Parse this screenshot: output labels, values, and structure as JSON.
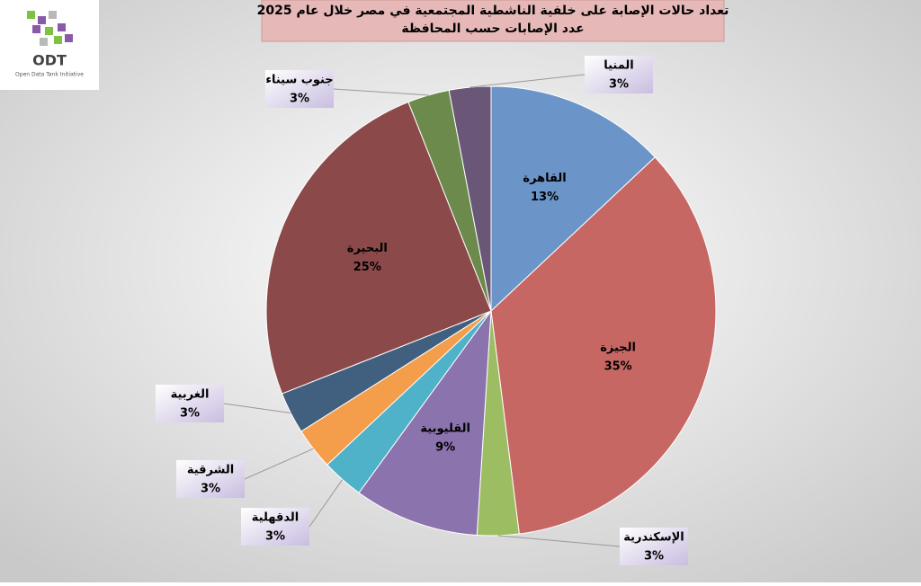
{
  "logo": {
    "name": "ODT",
    "tagline": "Open Data Tank Initiative"
  },
  "chart_data": {
    "type": "pie",
    "title": "تعداد حالات الإصابة على خلفية الناشطية المجتمعية في مصر خلال عام 2025",
    "subtitle": "عدد الإصابات حسب المحافظة",
    "categories": [
      "القاهرة",
      "الجيزة",
      "الإسكندرية",
      "القليوبية",
      "الدقهلية",
      "الشرقية",
      "الغربية",
      "البحيرة",
      "جنوب سيناء",
      "المنيا"
    ],
    "values": [
      13,
      35,
      3,
      9,
      3,
      3,
      3,
      25,
      3,
      3
    ],
    "value_labels": [
      "13%",
      "35%",
      "3%",
      "9%",
      "3%",
      "3%",
      "3%",
      "25%",
      "3%",
      "3%"
    ],
    "colors": [
      "#6b95c9",
      "#c76764",
      "#9dbd63",
      "#8b74ad",
      "#4fb2c9",
      "#f49d4b",
      "#41607f",
      "#8b4949",
      "#6b8a4c",
      "#6a5778"
    ]
  }
}
